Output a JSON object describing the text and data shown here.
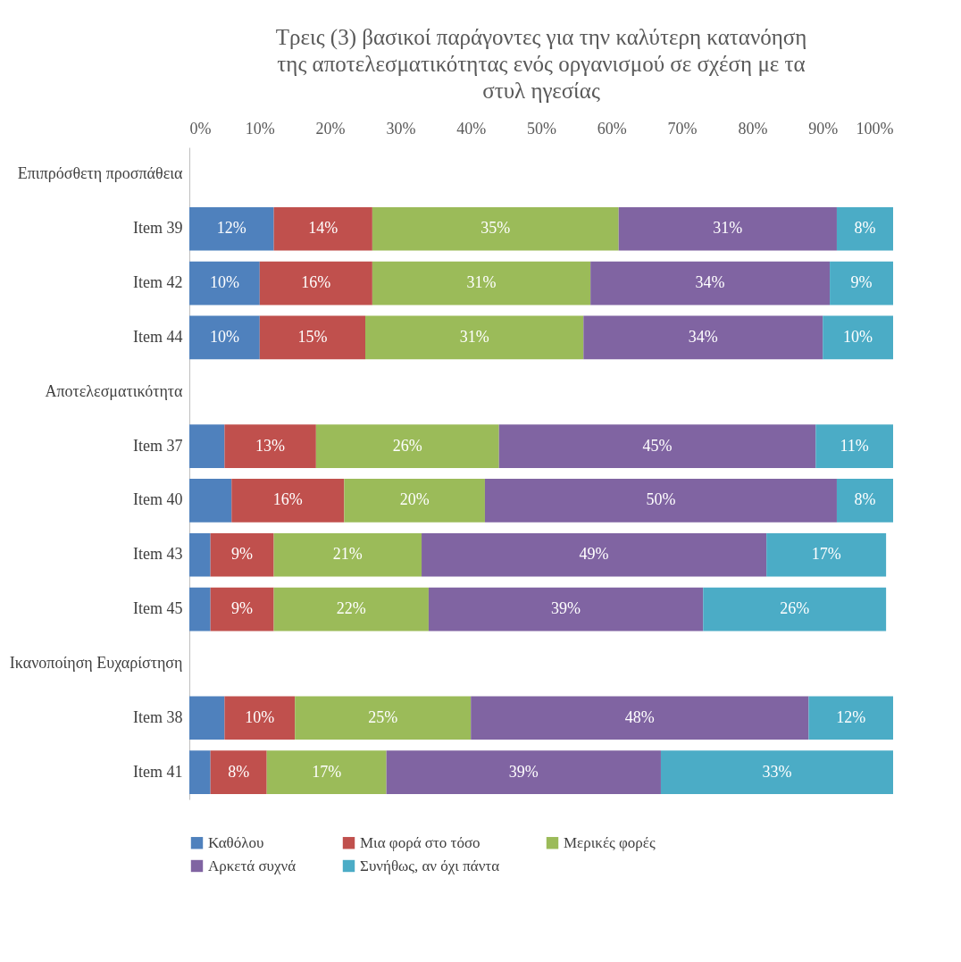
{
  "chart_data": {
    "type": "bar",
    "orientation": "horizontal",
    "stacked": true,
    "title": "Τρεις (3) βασικοί παράγοντες για την καλύτερη κατανόηση της αποτελεσματικότητας ενός οργανισμού σε σχέση με τα στυλ ηγεσίας",
    "categories": [
      "Επιπρόσθετη προσπάθεια",
      "Item 39",
      "Item 42",
      "Item 44",
      "Αποτελεσματικότητα",
      "Item 37",
      "Item 40",
      "Item 43",
      "Item 45",
      "Ικανοποίηση Ευχαρίστηση",
      "Item 38",
      "Item 41"
    ],
    "series": [
      {
        "name": "Καθόλου",
        "color": "#4f81bd",
        "values": [
          null,
          12,
          10,
          10,
          null,
          5,
          6,
          3,
          3,
          null,
          5,
          3
        ],
        "value_labels": [
          null,
          "12%",
          "10%",
          "10%",
          null,
          null,
          null,
          null,
          null,
          null,
          null,
          null
        ]
      },
      {
        "name": "Μια φορά στο τόσο",
        "color": "#c0504d",
        "values": [
          null,
          14,
          16,
          15,
          null,
          13,
          16,
          9,
          9,
          null,
          10,
          8
        ],
        "value_labels": [
          null,
          "14%",
          "16%",
          "15%",
          null,
          "13%",
          "16%",
          "9%",
          "9%",
          null,
          "10%",
          "8%"
        ]
      },
      {
        "name": "Μερικές φορές",
        "color": "#9bbb59",
        "values": [
          null,
          35,
          31,
          31,
          null,
          26,
          20,
          21,
          22,
          null,
          25,
          17
        ],
        "value_labels": [
          null,
          "35%",
          "31%",
          "31%",
          null,
          "26%",
          "20%",
          "21%",
          "22%",
          null,
          "25%",
          "17%"
        ]
      },
      {
        "name": "Αρκετά συχνά",
        "color": "#8064a2",
        "values": [
          null,
          31,
          34,
          34,
          null,
          45,
          50,
          49,
          39,
          null,
          48,
          39
        ],
        "value_labels": [
          null,
          "31%",
          "34%",
          "34%",
          null,
          "45%",
          "50%",
          "49%",
          "39%",
          null,
          "48%",
          "39%"
        ]
      },
      {
        "name": "Συνήθως, αν όχι πάντα",
        "color": "#4bacc6",
        "values": [
          null,
          8,
          9,
          10,
          null,
          11,
          8,
          17,
          26,
          null,
          12,
          33
        ],
        "value_labels": [
          null,
          "8%",
          "9%",
          "10%",
          null,
          "11%",
          "8%",
          "17%",
          "26%",
          null,
          "12%",
          "33%"
        ]
      }
    ],
    "xlim": [
      0,
      100
    ],
    "xticks": [
      {
        "value": 0,
        "label": "0%"
      },
      {
        "value": 10,
        "label": "10%"
      },
      {
        "value": 20,
        "label": "20%"
      },
      {
        "value": 30,
        "label": "30%"
      },
      {
        "value": 40,
        "label": "40%"
      },
      {
        "value": 50,
        "label": "50%"
      },
      {
        "value": 60,
        "label": "60%"
      },
      {
        "value": 70,
        "label": "70%"
      },
      {
        "value": 80,
        "label": "80%"
      },
      {
        "value": 90,
        "label": "90%"
      },
      {
        "value": 100,
        "label": "100%"
      }
    ],
    "grid": false,
    "legend": "bottom"
  }
}
